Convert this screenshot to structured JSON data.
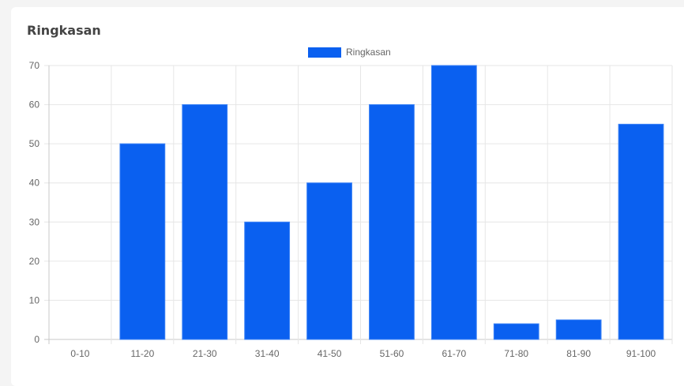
{
  "card": {
    "title": "Ringkasan"
  },
  "chart_data": {
    "type": "bar",
    "title": "",
    "xlabel": "",
    "ylabel": "",
    "categories": [
      "0-10",
      "11-20",
      "21-30",
      "31-40",
      "41-50",
      "51-60",
      "61-70",
      "71-80",
      "81-90",
      "91-100"
    ],
    "series": [
      {
        "name": "Ringkasan",
        "values": [
          0,
          50,
          60,
          30,
          40,
          60,
          70,
          4,
          5,
          55
        ],
        "color": "#0a60f0"
      }
    ],
    "ylim": [
      0,
      70
    ],
    "yticks": [
      0,
      10,
      20,
      30,
      40,
      50,
      60,
      70
    ],
    "grid": true,
    "legend": "top-center"
  }
}
